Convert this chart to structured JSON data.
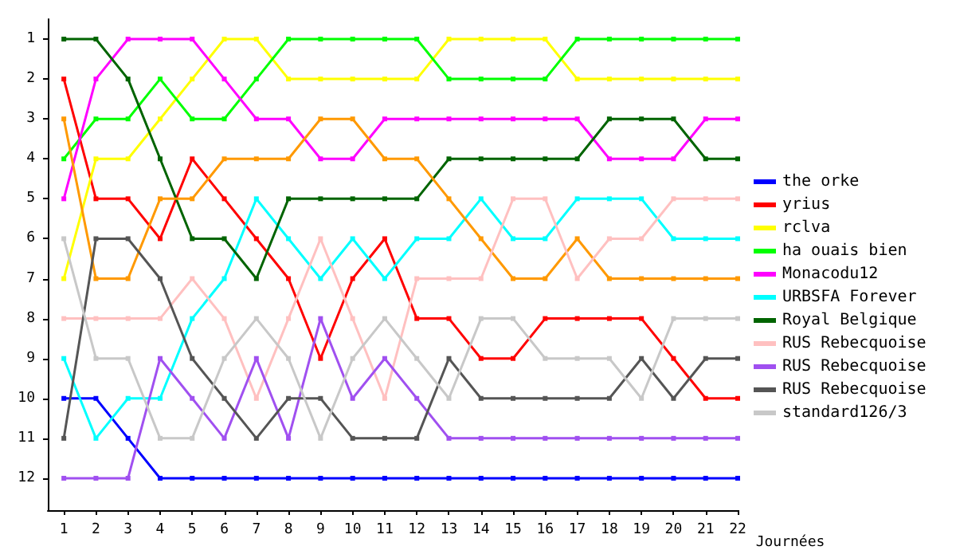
{
  "chart_data": {
    "type": "line",
    "xlabel": "Journées",
    "x": [
      1,
      2,
      3,
      4,
      5,
      6,
      7,
      8,
      9,
      10,
      11,
      12,
      13,
      14,
      15,
      16,
      17,
      18,
      19,
      20,
      21,
      22
    ],
    "xlim": [
      0.5,
      22
    ],
    "xticks": [
      1,
      2,
      3,
      4,
      5,
      6,
      7,
      8,
      9,
      10,
      11,
      12,
      13,
      14,
      15,
      16,
      17,
      18,
      19,
      20,
      21,
      22
    ],
    "ylim": [
      12.8,
      0.5
    ],
    "yticks": [
      1,
      2,
      3,
      4,
      5,
      6,
      7,
      8,
      9,
      10,
      11,
      12
    ],
    "grid": false,
    "legend": "right",
    "marker": "square",
    "line_style": "solid",
    "series": [
      {
        "name": "the orke",
        "color": "#0000ff",
        "values": [
          10,
          10,
          11,
          12,
          12,
          12,
          12,
          12,
          12,
          12,
          12,
          12,
          12,
          12,
          12,
          12,
          12,
          12,
          12,
          12,
          12,
          12
        ]
      },
      {
        "name": "yrius",
        "color": "#ff0000",
        "values": [
          2,
          5,
          5,
          6,
          4,
          5,
          6,
          7,
          9,
          7,
          6,
          8,
          8,
          9,
          9,
          8,
          8,
          8,
          8,
          9,
          10,
          10
        ]
      },
      {
        "name": "rclva",
        "color": "#ffff00",
        "values": [
          7,
          4,
          4,
          3,
          2,
          1,
          1,
          2,
          2,
          2,
          2,
          2,
          1,
          1,
          1,
          1,
          2,
          2,
          2,
          2,
          2,
          2
        ]
      },
      {
        "name": "ha ouais bien",
        "color": "#00ff00",
        "values": [
          4,
          3,
          3,
          2,
          3,
          3,
          2,
          1,
          1,
          1,
          1,
          1,
          2,
          2,
          2,
          2,
          1,
          1,
          1,
          1,
          1,
          1
        ]
      },
      {
        "name": "Monacodu12",
        "color": "#ff00ff",
        "values": [
          5,
          2,
          1,
          1,
          1,
          2,
          3,
          3,
          4,
          4,
          3,
          3,
          3,
          3,
          3,
          3,
          3,
          4,
          4,
          4,
          3,
          3
        ]
      },
      {
        "name": "URBSFA Forever",
        "color": "#00ffff",
        "values": [
          9,
          11,
          10,
          10,
          8,
          7,
          5,
          6,
          7,
          6,
          7,
          6,
          6,
          5,
          6,
          6,
          5,
          5,
          5,
          6,
          6,
          6
        ]
      },
      {
        "name": "Royal Belgique",
        "color": "#006400",
        "values": [
          1,
          1,
          2,
          4,
          6,
          6,
          7,
          5,
          5,
          5,
          5,
          5,
          4,
          4,
          4,
          4,
          4,
          3,
          3,
          3,
          4,
          4
        ]
      },
      {
        "color": "#ff9900",
        "values": [
          3,
          7,
          7,
          5,
          5,
          4,
          4,
          4,
          3,
          3,
          4,
          4,
          5,
          6,
          7,
          7,
          6,
          7,
          7,
          7,
          7,
          7
        ]
      },
      {
        "name": "RUS Rebecquoise",
        "color": "#ffc0c0",
        "values": [
          8,
          8,
          8,
          8,
          7,
          8,
          10,
          8,
          6,
          8,
          10,
          7,
          7,
          7,
          5,
          5,
          7,
          6,
          6,
          5,
          5,
          5
        ]
      },
      {
        "name": "RUS Rebecquoise",
        "color": "#a050f0",
        "values": [
          12,
          12,
          12,
          9,
          10,
          11,
          9,
          11,
          8,
          10,
          9,
          10,
          11,
          11,
          11,
          11,
          11,
          11,
          11,
          11,
          11,
          11
        ]
      },
      {
        "name": "RUS Rebecquoise",
        "color": "#555555",
        "values": [
          11,
          6,
          6,
          7,
          9,
          10,
          11,
          10,
          10,
          11,
          11,
          11,
          9,
          10,
          10,
          10,
          10,
          10,
          9,
          10,
          9,
          9
        ]
      },
      {
        "name": "standard126/3",
        "color": "#c8c8c8",
        "values": [
          6,
          9,
          9,
          11,
          11,
          9,
          8,
          9,
          11,
          9,
          8,
          9,
          10,
          8,
          8,
          9,
          9,
          9,
          10,
          8,
          8,
          8
        ]
      }
    ]
  }
}
